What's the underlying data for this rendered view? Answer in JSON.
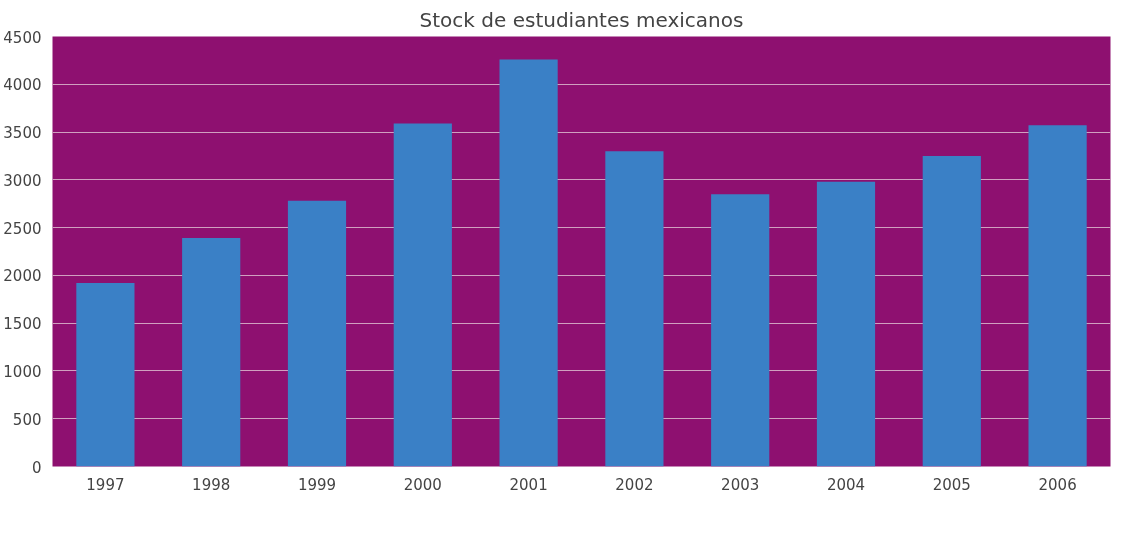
{
  "chart_data": {
    "type": "bar",
    "title": "Stock de estudiantes mexicanos",
    "categories": [
      "1997",
      "1998",
      "1999",
      "2000",
      "2001",
      "2002",
      "2003",
      "2004",
      "2005",
      "2006"
    ],
    "values": [
      1920,
      2390,
      2780,
      3590,
      4260,
      3300,
      2850,
      2980,
      3250,
      3570
    ],
    "color": "#3a80c6",
    "ylim": [
      0,
      4500
    ],
    "yticks": [
      0,
      500,
      1000,
      1500,
      2000,
      2500,
      3000,
      3500,
      4000,
      4500
    ],
    "grid": "y"
  }
}
